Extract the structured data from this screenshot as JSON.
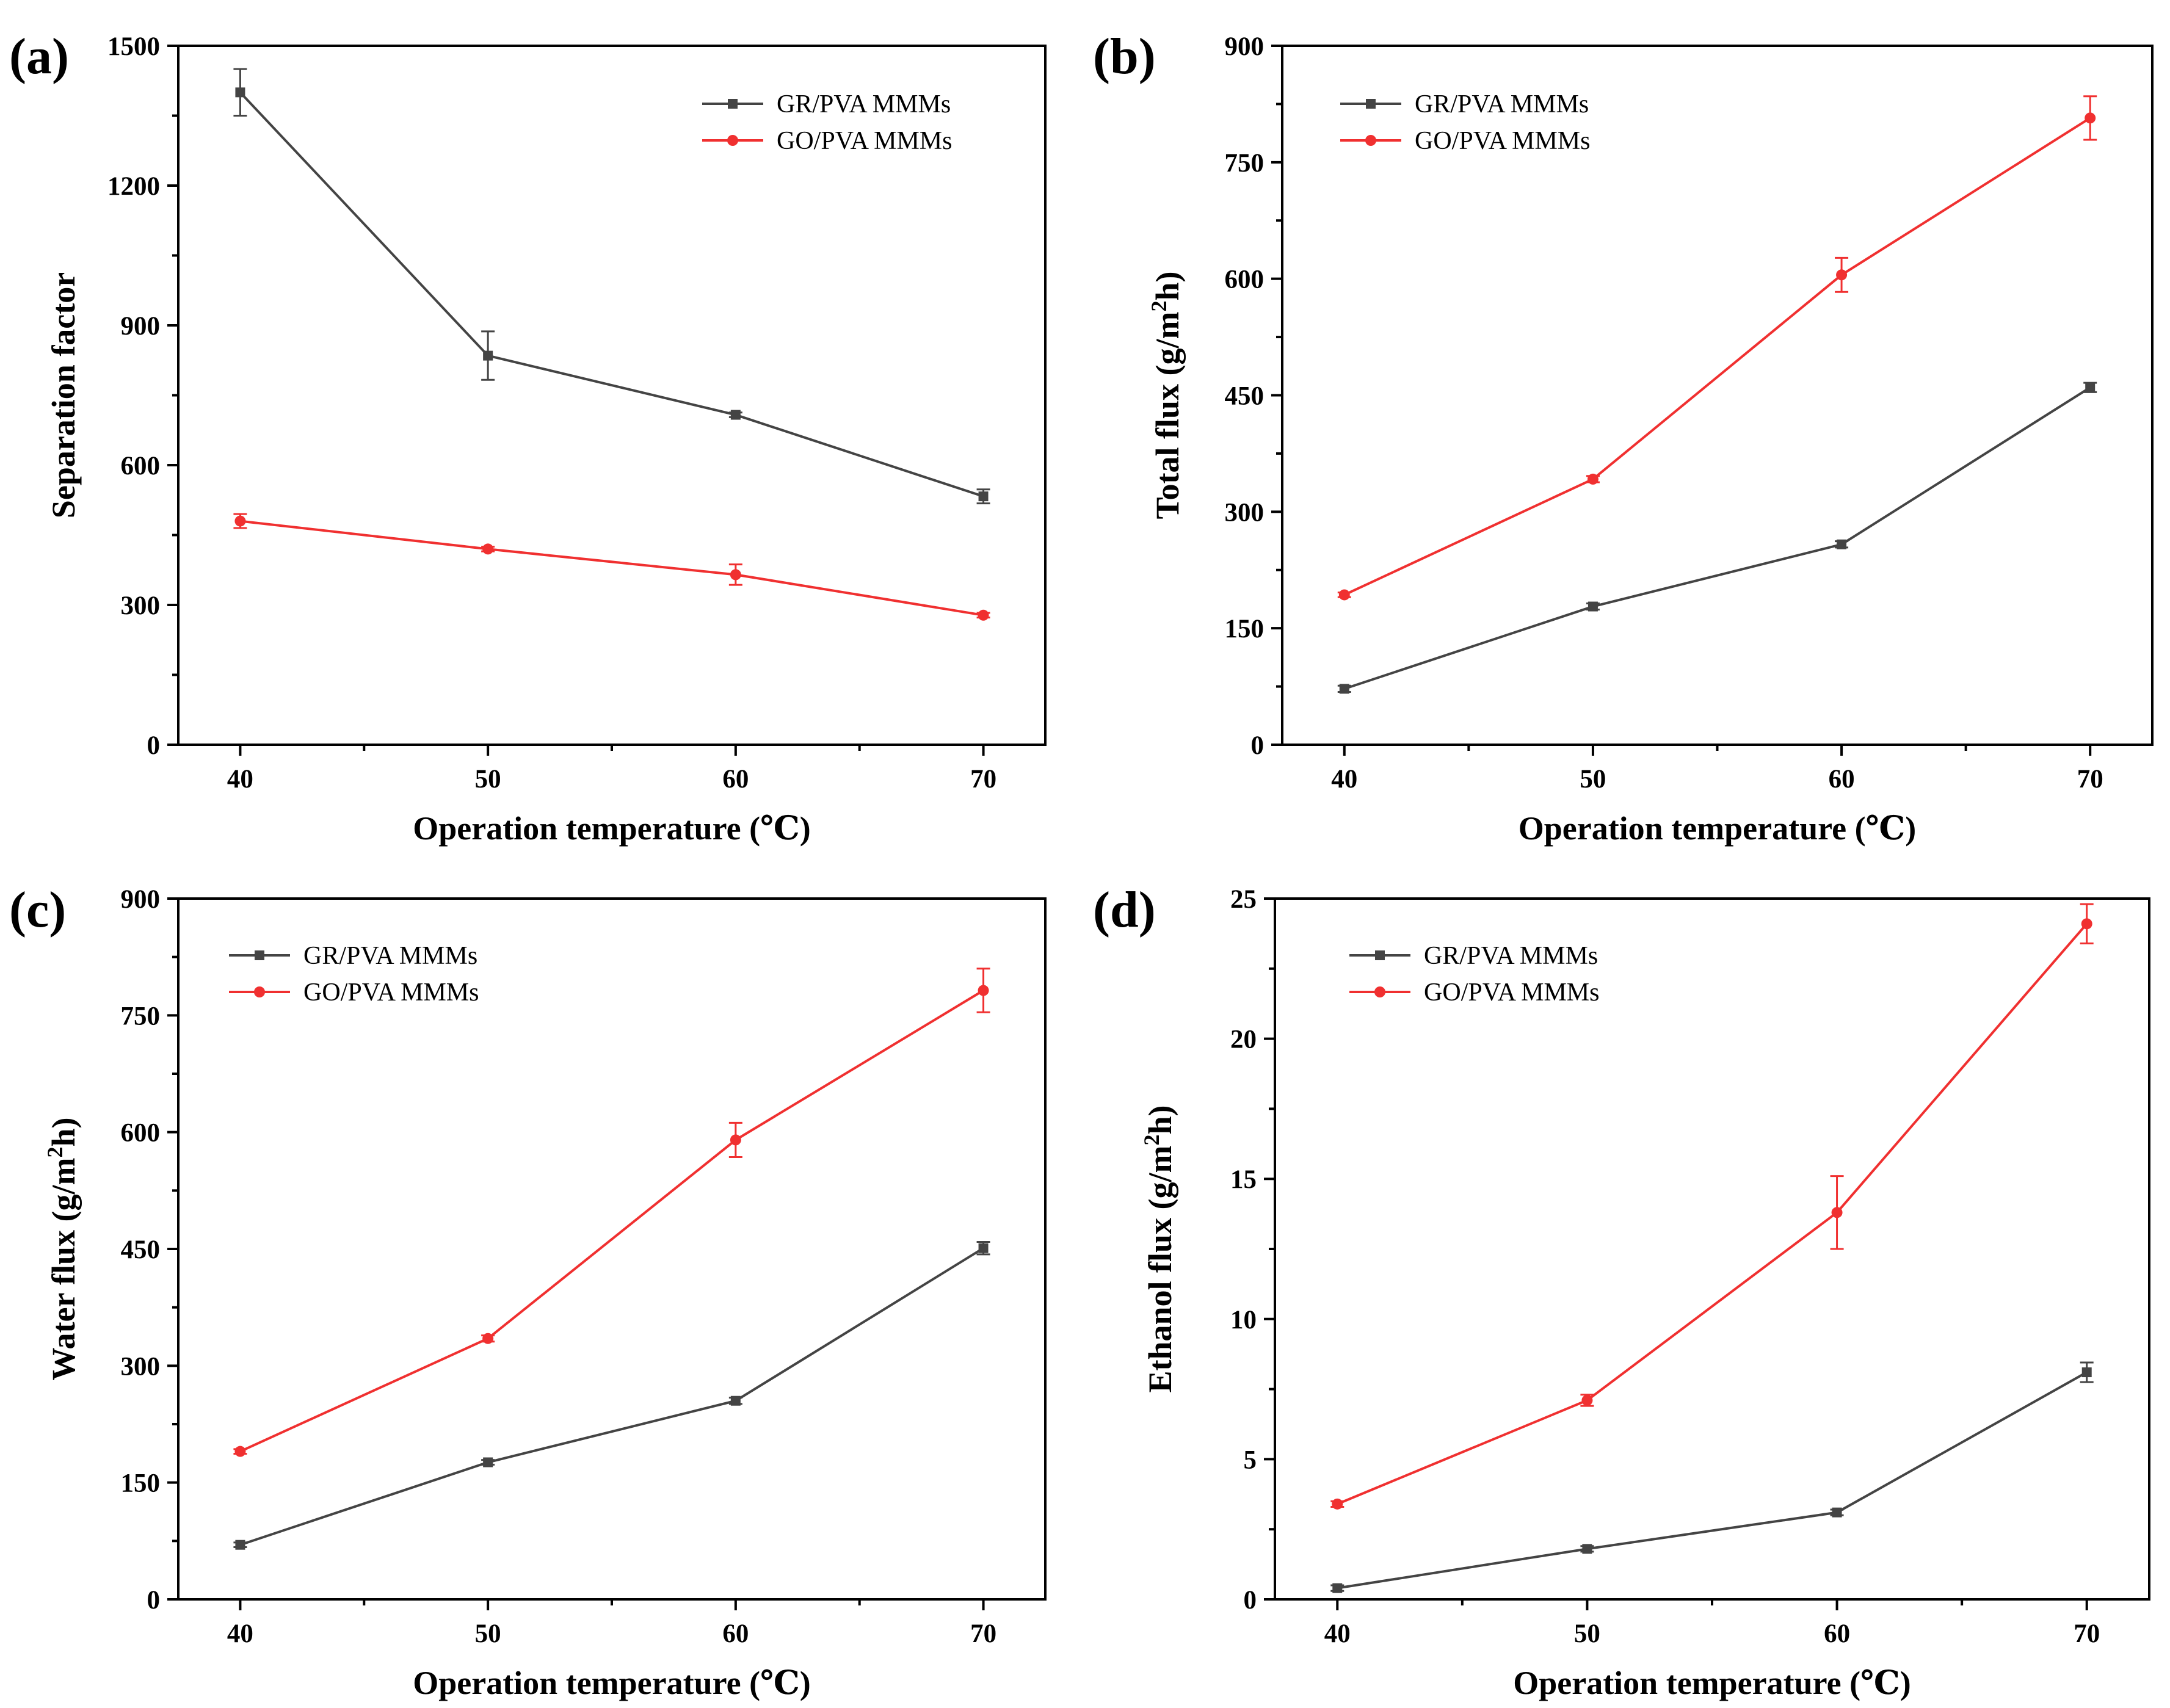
{
  "chart_data": [
    {
      "type": "line",
      "panel_label": "(a)",
      "title": "",
      "xlabel": "Operation temperature (℃)",
      "ylabel": "Separation factor",
      "ylabel_sup": "",
      "ylabel_tail": "",
      "x": [
        40,
        50,
        60,
        70
      ],
      "xlim": [
        37.5,
        72.5
      ],
      "xticks": [
        40,
        50,
        60,
        70
      ],
      "ylim": [
        0,
        1500
      ],
      "yticks": [
        0,
        300,
        600,
        900,
        1200,
        1500
      ],
      "legend_position": "top-right",
      "series": [
        {
          "name": "GR/PVA MMMs",
          "color": "#444444",
          "marker": "square",
          "values": [
            1400,
            835,
            708,
            533
          ],
          "errors": [
            50,
            52,
            5,
            15
          ]
        },
        {
          "name": "GO/PVA MMMs",
          "color": "#f03030",
          "marker": "circle",
          "values": [
            480,
            420,
            365,
            278
          ],
          "errors": [
            15,
            5,
            22,
            5
          ]
        }
      ]
    },
    {
      "type": "line",
      "panel_label": "(b)",
      "title": "",
      "xlabel": "Operation temperature (℃)",
      "ylabel": "Total flux (g/m",
      "ylabel_sup": "2",
      "ylabel_tail": "h)",
      "x": [
        40,
        50,
        60,
        70
      ],
      "xlim": [
        37.5,
        72.5
      ],
      "xticks": [
        40,
        50,
        60,
        70
      ],
      "ylim": [
        0,
        900
      ],
      "yticks": [
        0,
        150,
        300,
        450,
        600,
        750,
        900
      ],
      "legend_position": "top-left",
      "series": [
        {
          "name": "GR/PVA MMMs",
          "color": "#444444",
          "marker": "square",
          "values": [
            72,
            178,
            258,
            460
          ],
          "errors": [
            4,
            4,
            4,
            6
          ]
        },
        {
          "name": "GO/PVA MMMs",
          "color": "#f03030",
          "marker": "circle",
          "values": [
            193,
            342,
            605,
            807
          ],
          "errors": [
            3,
            4,
            22,
            28
          ]
        }
      ]
    },
    {
      "type": "line",
      "panel_label": "(c)",
      "title": "",
      "xlabel": "Operation temperature (℃)",
      "ylabel": "Water flux (g/m",
      "ylabel_sup": "2",
      "ylabel_tail": "h)",
      "x": [
        40,
        50,
        60,
        70
      ],
      "xlim": [
        37.5,
        72.5
      ],
      "xticks": [
        40,
        50,
        60,
        70
      ],
      "ylim": [
        0,
        900
      ],
      "yticks": [
        0,
        150,
        300,
        450,
        600,
        750,
        900
      ],
      "legend_position": "top-left",
      "series": [
        {
          "name": "GR/PVA MMMs",
          "color": "#444444",
          "marker": "square",
          "values": [
            70,
            176,
            255,
            451
          ],
          "errors": [
            3,
            3,
            4,
            8
          ]
        },
        {
          "name": "GO/PVA MMMs",
          "color": "#f03030",
          "marker": "circle",
          "values": [
            190,
            335,
            590,
            782
          ],
          "errors": [
            3,
            4,
            22,
            28
          ]
        }
      ]
    },
    {
      "type": "line",
      "panel_label": "(d)",
      "title": "",
      "xlabel": "Operation temperature (℃)",
      "ylabel": "Ethanol flux (g/m",
      "ylabel_sup": "2",
      "ylabel_tail": "h)",
      "x": [
        40,
        50,
        60,
        70
      ],
      "xlim": [
        37.5,
        72.5
      ],
      "xticks": [
        40,
        50,
        60,
        70
      ],
      "ylim": [
        0,
        25
      ],
      "yticks": [
        0,
        5,
        10,
        15,
        20,
        25
      ],
      "legend_position": "top-left",
      "series": [
        {
          "name": "GR/PVA MMMs",
          "color": "#444444",
          "marker": "square",
          "values": [
            0.4,
            1.8,
            3.1,
            8.1
          ],
          "errors": [
            0.1,
            0.1,
            0.1,
            0.35
          ]
        },
        {
          "name": "GO/PVA MMMs",
          "color": "#f03030",
          "marker": "circle",
          "values": [
            3.4,
            7.1,
            13.8,
            24.1
          ],
          "errors": [
            0.1,
            0.2,
            1.3,
            0.7
          ]
        }
      ]
    }
  ]
}
